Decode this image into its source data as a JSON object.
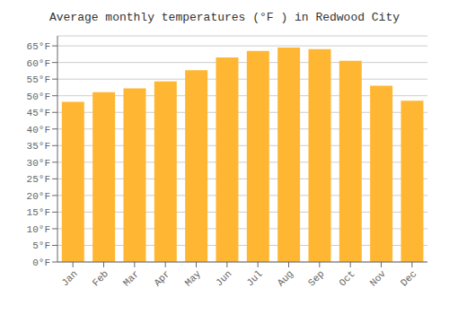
{
  "chart_data": {
    "type": "bar",
    "title": "Average monthly temperatures (°F ) in Redwood City",
    "categories": [
      "Jan",
      "Feb",
      "Mar",
      "Apr",
      "May",
      "Jun",
      "Jul",
      "Aug",
      "Sep",
      "Oct",
      "Nov",
      "Dec"
    ],
    "values": [
      48.2,
      51.1,
      52.2,
      54.3,
      57.7,
      61.5,
      63.5,
      64.5,
      64.0,
      60.5,
      53.0,
      48.5
    ],
    "color": "#FFB733",
    "ylim": [
      0,
      68
    ],
    "yticks": [
      {
        "value": 0,
        "label": "0°F"
      },
      {
        "value": 5,
        "label": "5°F"
      },
      {
        "value": 10,
        "label": "10°F"
      },
      {
        "value": 15,
        "label": "15°F"
      },
      {
        "value": 20,
        "label": "20°F"
      },
      {
        "value": 25,
        "label": "25°F"
      },
      {
        "value": 30,
        "label": "30°F"
      },
      {
        "value": 35,
        "label": "35°F"
      },
      {
        "value": 40,
        "label": "40°F"
      },
      {
        "value": 45,
        "label": "45°F"
      },
      {
        "value": 50,
        "label": "50°F"
      },
      {
        "value": 55,
        "label": "55°F"
      },
      {
        "value": 60,
        "label": "60°F"
      },
      {
        "value": 65,
        "label": "65°F"
      }
    ],
    "grid": true
  }
}
